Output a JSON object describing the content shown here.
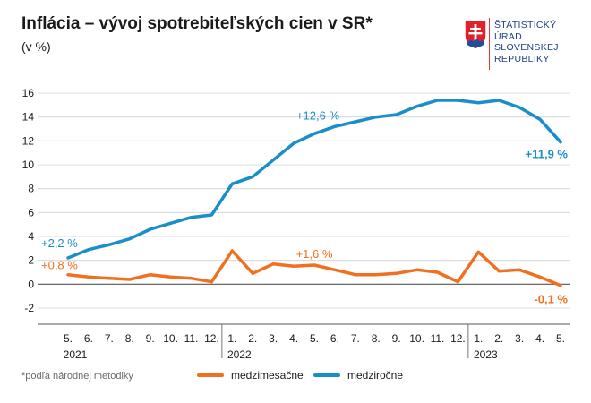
{
  "header": {
    "title": "Inflácia – vývoj spotrebiteľských cien v SR*",
    "subtitle": "(v %)"
  },
  "logo": {
    "icon": "slovak-coat-of-arms-icon",
    "lines": [
      "ŠTATISTICKÝ",
      "ÚRAD",
      "SLOVENSKEJ",
      "REPUBLIKY"
    ]
  },
  "footnote": "*podľa národnej metodiky",
  "colors": {
    "mom": "#f07020",
    "yoy": "#1a8ec8",
    "grid": "#d0d0d0"
  },
  "chart_data": {
    "type": "line",
    "ylim": [
      -2,
      16
    ],
    "yticks": [
      -2,
      0,
      2,
      4,
      6,
      8,
      10,
      12,
      14,
      16
    ],
    "categories": [
      "5.",
      "6.",
      "7.",
      "8.",
      "9.",
      "10.",
      "11.",
      "12.",
      "1.",
      "2.",
      "3.",
      "4.",
      "5.",
      "6.",
      "7.",
      "8.",
      "9.",
      "10.",
      "11.",
      "12.",
      "1.",
      "2.",
      "3.",
      "4.",
      "5."
    ],
    "years": [
      {
        "label": "2021",
        "index": 0
      },
      {
        "label": "2022",
        "index": 8
      },
      {
        "label": "2023",
        "index": 20
      }
    ],
    "series": [
      {
        "name": "medzimesačne",
        "color": "#f07020",
        "values": [
          0.8,
          0.6,
          0.5,
          0.4,
          0.8,
          0.6,
          0.5,
          0.2,
          2.8,
          0.9,
          1.7,
          1.5,
          1.6,
          1.2,
          0.8,
          0.8,
          0.9,
          1.2,
          1.0,
          0.2,
          2.7,
          1.1,
          1.2,
          0.6,
          -0.1
        ]
      },
      {
        "name": "medziročne",
        "color": "#1a8ec8",
        "values": [
          2.2,
          2.9,
          3.3,
          3.8,
          4.6,
          5.1,
          5.6,
          5.8,
          8.4,
          9.0,
          10.4,
          11.8,
          12.6,
          13.2,
          13.6,
          14.0,
          14.2,
          14.9,
          15.4,
          15.4,
          15.2,
          15.4,
          14.8,
          13.8,
          11.9
        ]
      }
    ],
    "annotations": [
      {
        "text": "+2,2 %",
        "color": "#1a8ec8",
        "bold": false
      },
      {
        "text": "+0,8 %",
        "color": "#f07020",
        "bold": false
      },
      {
        "text": "+12,6 %",
        "color": "#1a8ec8",
        "bold": false
      },
      {
        "text": "+1,6 %",
        "color": "#f07020",
        "bold": false
      },
      {
        "text": "+11,9 %",
        "color": "#1a8ec8",
        "bold": true
      },
      {
        "text": "-0,1 %",
        "color": "#f07020",
        "bold": true
      }
    ]
  }
}
